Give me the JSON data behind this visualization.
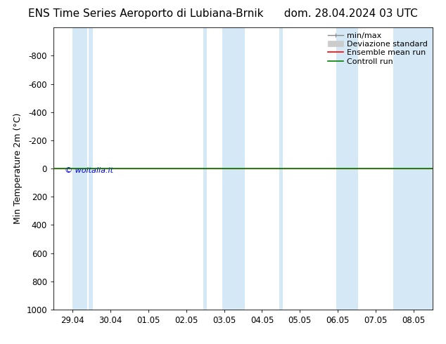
{
  "title_left": "ENS Time Series Aeroporto di Lubiana-Brnik",
  "title_right": "dom. 28.04.2024 03 UTC",
  "ylabel": "Min Temperature 2m (°C)",
  "ylim_bottom": 1000,
  "ylim_top": -1000,
  "yticks": [
    -800,
    -600,
    -400,
    -200,
    0,
    200,
    400,
    600,
    800,
    1000
  ],
  "x_labels": [
    "29.04",
    "30.04",
    "01.05",
    "02.05",
    "03.05",
    "04.05",
    "05.05",
    "06.05",
    "07.05",
    "08.05"
  ],
  "shaded_bands": [
    {
      "xmin": 0.0,
      "xmax": 0.38
    },
    {
      "xmin": 0.42,
      "xmax": 0.54
    },
    {
      "xmin": 3.46,
      "xmax": 3.54
    },
    {
      "xmin": 3.96,
      "xmax": 4.54
    },
    {
      "xmin": 5.46,
      "xmax": 5.54
    },
    {
      "xmin": 6.96,
      "xmax": 7.54
    },
    {
      "xmin": 8.46,
      "xmax": 9.5
    }
  ],
  "shaded_color": "#d5e8f5",
  "background_color": "#ffffff",
  "ensemble_mean_color": "#ff0000",
  "control_run_color": "#008000",
  "minmax_color": "#888888",
  "std_color": "#cccccc",
  "copyright_text": "© woitalia.it",
  "copyright_color": "#0000cc",
  "legend_labels": [
    "min/max",
    "Deviazione standard",
    "Ensemble mean run",
    "Controll run"
  ],
  "flat_value": 0,
  "title_fontsize": 11,
  "axis_fontsize": 9,
  "tick_fontsize": 8.5,
  "legend_fontsize": 8
}
